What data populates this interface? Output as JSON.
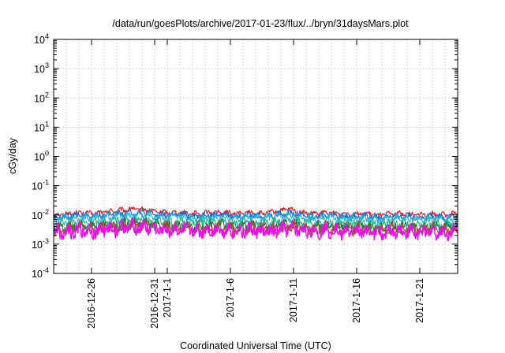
{
  "chart_data": {
    "type": "line",
    "title": "/data/run/goesPlots/archive/2017-01-23/flux/../bryn/31daysMars.plot",
    "xlabel": "Coordinated Universal Time (UTC)",
    "ylabel": "cGy/day",
    "x_axis": {
      "type": "date",
      "range": [
        "2016-12-23",
        "2017-01-24"
      ],
      "ticks": [
        {
          "date": "2016-12-26",
          "label": "2016-12-26"
        },
        {
          "date": "2016-12-31",
          "label": "2016-12-31"
        },
        {
          "date": "2017-01-01",
          "label": "2017-1-1"
        },
        {
          "date": "2017-01-06",
          "label": "2017-1-6"
        },
        {
          "date": "2017-01-11",
          "label": "2017-1-11"
        },
        {
          "date": "2017-01-16",
          "label": "2017-1-16"
        },
        {
          "date": "2017-01-21",
          "label": "2017-1-21"
        }
      ]
    },
    "y_axis": {
      "scale": "log",
      "range": [
        0.0001,
        10000
      ],
      "ticks": [
        {
          "value": 0.0001,
          "base": "10",
          "exp": "-4"
        },
        {
          "value": 0.001,
          "base": "10",
          "exp": "-3"
        },
        {
          "value": 0.01,
          "base": "10",
          "exp": "-2"
        },
        {
          "value": 0.1,
          "base": "10",
          "exp": "-1"
        },
        {
          "value": 1,
          "base": "10",
          "exp": "0"
        },
        {
          "value": 10,
          "base": "10",
          "exp": "1"
        },
        {
          "value": 100,
          "base": "10",
          "exp": "2"
        },
        {
          "value": 1000,
          "base": "10",
          "exp": "3"
        },
        {
          "value": 10000,
          "base": "10",
          "exp": "4"
        }
      ]
    },
    "grid": true,
    "series": [
      {
        "color": "#e41a1c",
        "values": [
          0.01,
          0.011,
          0.012,
          0.011,
          0.013,
          0.014,
          0.016,
          0.015,
          0.013,
          0.012,
          0.012,
          0.011,
          0.012,
          0.012,
          0.011,
          0.012,
          0.011,
          0.013,
          0.016,
          0.012,
          0.011,
          0.012,
          0.011,
          0.011,
          0.011,
          0.01,
          0.011,
          0.011,
          0.01,
          0.011,
          0.01,
          0.011
        ]
      },
      {
        "color": "#1f5fd6",
        "values": [
          0.008,
          0.009,
          0.01,
          0.009,
          0.01,
          0.011,
          0.012,
          0.012,
          0.01,
          0.01,
          0.01,
          0.009,
          0.01,
          0.01,
          0.009,
          0.01,
          0.009,
          0.01,
          0.012,
          0.01,
          0.009,
          0.01,
          0.009,
          0.009,
          0.009,
          0.008,
          0.009,
          0.009,
          0.008,
          0.009,
          0.008,
          0.009
        ]
      },
      {
        "color": "#16b3e8",
        "values": [
          0.007,
          0.0075,
          0.008,
          0.0075,
          0.0085,
          0.009,
          0.01,
          0.01,
          0.0085,
          0.0085,
          0.0085,
          0.0075,
          0.0085,
          0.0085,
          0.0075,
          0.0085,
          0.0075,
          0.0085,
          0.01,
          0.0085,
          0.0075,
          0.0085,
          0.0075,
          0.0075,
          0.0075,
          0.007,
          0.0075,
          0.0075,
          0.007,
          0.0075,
          0.007,
          0.0075
        ]
      },
      {
        "color": "#1bbf8a",
        "values": [
          0.0045,
          0.005,
          0.0055,
          0.005,
          0.0055,
          0.006,
          0.0065,
          0.0065,
          0.0055,
          0.0055,
          0.0055,
          0.005,
          0.0055,
          0.0055,
          0.005,
          0.0055,
          0.005,
          0.0055,
          0.0065,
          0.0055,
          0.005,
          0.0055,
          0.005,
          0.005,
          0.005,
          0.0045,
          0.005,
          0.005,
          0.0045,
          0.005,
          0.0045,
          0.005
        ]
      },
      {
        "color": "#1a7a3a",
        "values": [
          0.0035,
          0.0038,
          0.004,
          0.0038,
          0.0042,
          0.0045,
          0.005,
          0.005,
          0.0042,
          0.0042,
          0.0042,
          0.0038,
          0.0042,
          0.0042,
          0.0038,
          0.0042,
          0.0038,
          0.0042,
          0.005,
          0.0042,
          0.0038,
          0.0042,
          0.0038,
          0.0038,
          0.0038,
          0.0035,
          0.0038,
          0.0038,
          0.0035,
          0.0038,
          0.0035,
          0.0038
        ]
      },
      {
        "color": "#a0522d",
        "values": [
          0.003,
          0.0032,
          0.0034,
          0.0032,
          0.0036,
          0.0038,
          0.0042,
          0.0042,
          0.0036,
          0.0036,
          0.0036,
          0.0032,
          0.0036,
          0.0036,
          0.0032,
          0.0036,
          0.0032,
          0.0036,
          0.0042,
          0.0036,
          0.0032,
          0.0036,
          0.0032,
          0.0032,
          0.0032,
          0.003,
          0.0032,
          0.0032,
          0.003,
          0.0032,
          0.003,
          0.0032
        ]
      },
      {
        "color": "#ff00ff",
        "values": [
          0.0025,
          0.0027,
          0.003,
          0.0027,
          0.0032,
          0.0034,
          0.0038,
          0.0038,
          0.003,
          0.003,
          0.003,
          0.0027,
          0.003,
          0.003,
          0.0027,
          0.003,
          0.0025,
          0.0028,
          0.0034,
          0.003,
          0.0027,
          0.003,
          0.0027,
          0.0027,
          0.0027,
          0.0024,
          0.0027,
          0.0027,
          0.0024,
          0.0027,
          0.0024,
          0.0027
        ]
      }
    ]
  }
}
